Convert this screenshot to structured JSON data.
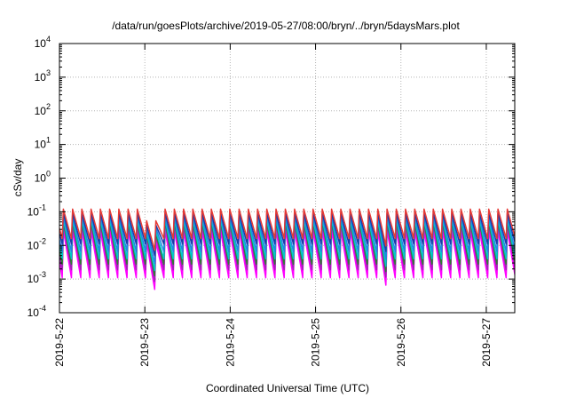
{
  "chart_data": {
    "type": "line",
    "title": "/data/run/goesPlots/archive/2019-05-27/08:00/bryn/../bryn/5daysMars.plot",
    "xlabel": "Coordinated Universal Time (UTC)",
    "ylabel": "cSv/day",
    "y_scale": "log",
    "ylim": [
      0.0001,
      10000
    ],
    "y_ticks": [
      0.0001,
      0.001,
      0.01,
      0.1,
      1,
      10,
      100,
      1000,
      10000
    ],
    "y_tick_labels": [
      {
        "base": "10",
        "exp": "-4"
      },
      {
        "base": "10",
        "exp": "-3"
      },
      {
        "base": "10",
        "exp": "-2"
      },
      {
        "base": "10",
        "exp": "-1"
      },
      {
        "base": "10",
        "exp": "0"
      },
      {
        "base": "10",
        "exp": "1"
      },
      {
        "base": "10",
        "exp": "2"
      },
      {
        "base": "10",
        "exp": "3"
      },
      {
        "base": "10",
        "exp": "4"
      }
    ],
    "xlim": [
      "2019-05-22 00:00",
      "2019-05-27 08:00"
    ],
    "x_ticks": [
      "2019-05-22",
      "2019-05-23",
      "2019-05-24",
      "2019-05-25",
      "2019-05-26",
      "2019-05-27"
    ],
    "x_tick_labels": [
      "2019-5-22",
      "2019-5-23",
      "2019-5-24",
      "2019-5-25",
      "2019-5-26",
      "2019-5-27"
    ],
    "grid": true,
    "legend": "none",
    "cycle_hours": 2.6,
    "series": [
      {
        "color": "#ff00ff",
        "peak": 0.028,
        "trough": 0.0011
      },
      {
        "color": "#ff00ff",
        "peak": 0.034,
        "trough": 0.0014
      },
      {
        "color": "#9c27b0",
        "peak": 0.045,
        "trough": 0.0019
      },
      {
        "color": "#2e7d32",
        "peak": 0.052,
        "trough": 0.0028
      },
      {
        "color": "#00c8c8",
        "peak": 0.06,
        "trough": 0.004
      },
      {
        "color": "#1e88e5",
        "peak": 0.075,
        "trough": 0.0065
      },
      {
        "color": "#1a3caa",
        "peak": 0.09,
        "trough": 0.011
      },
      {
        "color": "#e53935",
        "peak": 0.12,
        "trough": 0.016
      }
    ],
    "dips": [
      {
        "start": "2019-05-23 00:15",
        "end": "2019-05-23 04:30",
        "factor": 0.45
      },
      {
        "start": "2019-05-24 19:40",
        "end": "2019-05-24 20:10",
        "factor": 0.55
      },
      {
        "start": "2019-05-25 19:20",
        "end": "2019-05-25 19:50",
        "factor": 0.6
      }
    ]
  }
}
